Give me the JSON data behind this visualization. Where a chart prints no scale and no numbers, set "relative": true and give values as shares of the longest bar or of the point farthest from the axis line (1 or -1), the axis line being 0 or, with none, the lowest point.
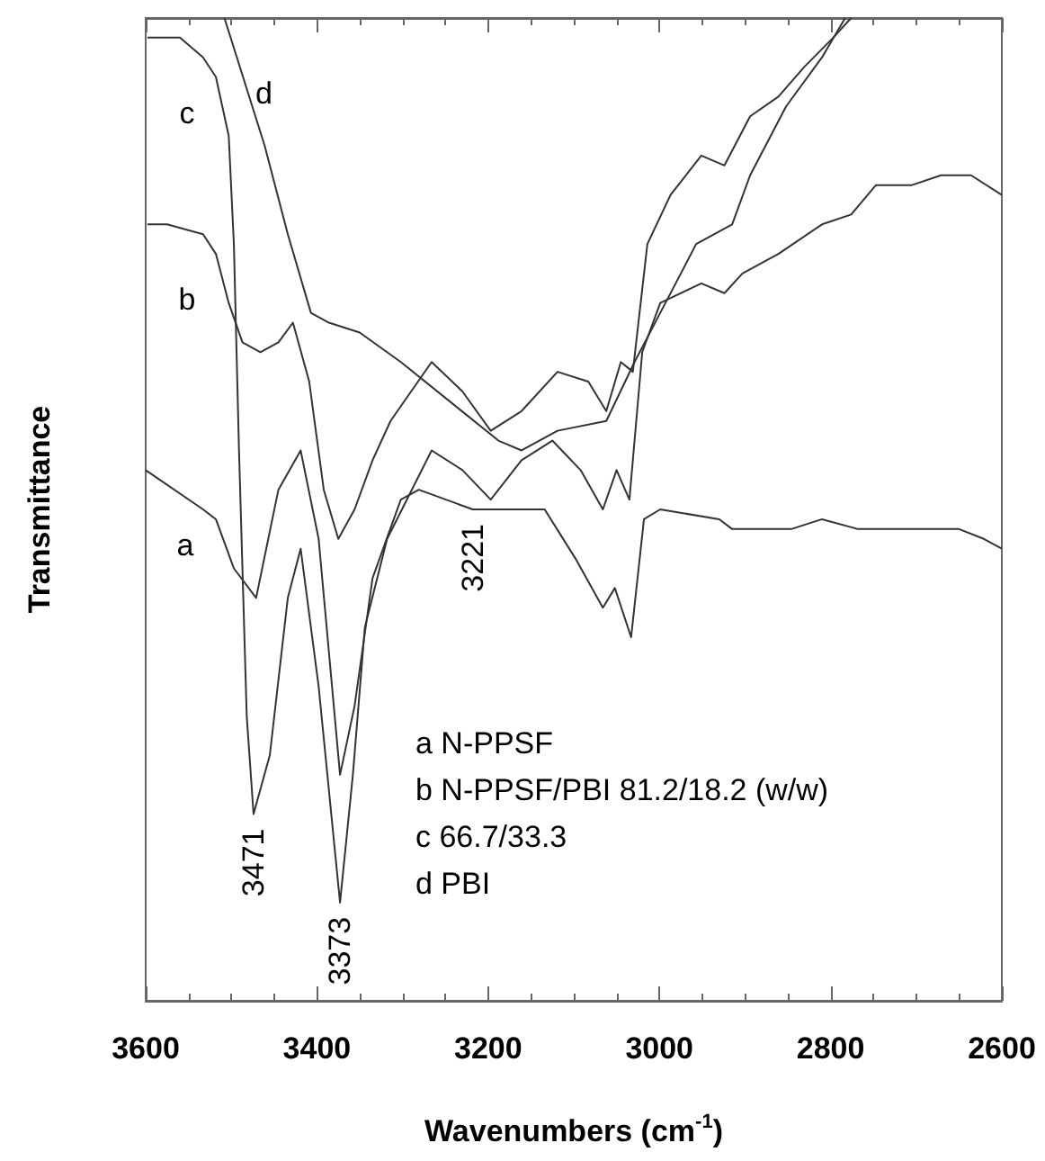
{
  "chart_data": {
    "type": "line",
    "relative": true,
    "xlabel": "Wavenumbers (cm$^{-1}$)",
    "ylabel": "Transmittance",
    "xlim": [
      3600,
      2600
    ],
    "xticks": [
      3600,
      3400,
      3200,
      3000,
      2800,
      2600
    ],
    "marker": "none",
    "annotations": [
      "a N-PPSF",
      "b N-PPSF/PBI 81.2/18.2 (w/w)",
      "c 66.7/33.3",
      "d PBI",
      {
        "text": "3471",
        "x": 3474,
        "y": 0.19
      },
      {
        "text": "3373",
        "x": 3373,
        "y": 0.1
      },
      {
        "text": "3221",
        "x": 3218,
        "y": 0.5
      }
    ],
    "series": [
      {
        "name": "a",
        "color": "#333333",
        "x": [
          3600,
          3533,
          3518,
          3497,
          3471,
          3445,
          3419,
          3398,
          3373,
          3356,
          3335,
          3302,
          3281,
          3218,
          3134,
          3098,
          3066,
          3052,
          3033,
          3018,
          2999,
          2930,
          2915,
          2846,
          2810,
          2768,
          2720,
          2650,
          2621,
          2600
        ],
        "values": [
          0.54,
          0.5,
          0.49,
          0.44,
          0.41,
          0.52,
          0.56,
          0.47,
          0.23,
          0.3,
          0.43,
          0.51,
          0.52,
          0.5,
          0.5,
          0.45,
          0.4,
          0.42,
          0.37,
          0.49,
          0.5,
          0.49,
          0.48,
          0.48,
          0.49,
          0.48,
          0.48,
          0.48,
          0.47,
          0.46
        ]
      },
      {
        "name": "b",
        "color": "#333333",
        "x": [
          3598,
          3575,
          3533,
          3518,
          3503,
          3487,
          3466,
          3445,
          3428,
          3409,
          3392,
          3375,
          3356,
          3335,
          3314,
          3266,
          3230,
          3197,
          3161,
          3119,
          3083,
          3062,
          3045,
          3031,
          3014,
          2987,
          2951,
          2924,
          2894,
          2861,
          2831,
          2797,
          2776
        ],
        "values": [
          0.79,
          0.79,
          0.78,
          0.76,
          0.71,
          0.67,
          0.66,
          0.67,
          0.69,
          0.63,
          0.52,
          0.47,
          0.5,
          0.55,
          0.59,
          0.65,
          0.62,
          0.58,
          0.6,
          0.64,
          0.63,
          0.6,
          0.65,
          0.64,
          0.77,
          0.82,
          0.86,
          0.85,
          0.9,
          0.92,
          0.95,
          0.98,
          1.0
        ]
      },
      {
        "name": "c",
        "color": "#333333",
        "x": [
          3598,
          3560,
          3533,
          3518,
          3503,
          3497,
          3491,
          3482,
          3474,
          3455,
          3434,
          3419,
          3398,
          3373,
          3358,
          3344,
          3318,
          3266,
          3230,
          3197,
          3161,
          3125,
          3092,
          3066,
          3050,
          3035,
          3020,
          2999,
          2951,
          2924,
          2903,
          2861,
          2810,
          2776,
          2747,
          2705,
          2671,
          2636,
          2600
        ],
        "values": [
          0.98,
          0.98,
          0.96,
          0.94,
          0.88,
          0.77,
          0.56,
          0.29,
          0.19,
          0.25,
          0.41,
          0.46,
          0.32,
          0.1,
          0.23,
          0.38,
          0.47,
          0.56,
          0.54,
          0.51,
          0.55,
          0.57,
          0.54,
          0.5,
          0.54,
          0.51,
          0.66,
          0.71,
          0.73,
          0.72,
          0.74,
          0.76,
          0.79,
          0.8,
          0.83,
          0.83,
          0.84,
          0.84,
          0.82
        ]
      },
      {
        "name": "d",
        "color": "#333333",
        "x": [
          3508,
          3461,
          3434,
          3407,
          3386,
          3350,
          3302,
          3245,
          3188,
          3161,
          3119,
          3062,
          3029,
          2999,
          2957,
          2915,
          2894,
          2852,
          2810,
          2783
        ],
        "values": [
          1.0,
          0.87,
          0.78,
          0.7,
          0.69,
          0.68,
          0.65,
          0.61,
          0.57,
          0.56,
          0.58,
          0.59,
          0.65,
          0.7,
          0.77,
          0.79,
          0.84,
          0.91,
          0.96,
          1.0
        ]
      }
    ]
  }
}
